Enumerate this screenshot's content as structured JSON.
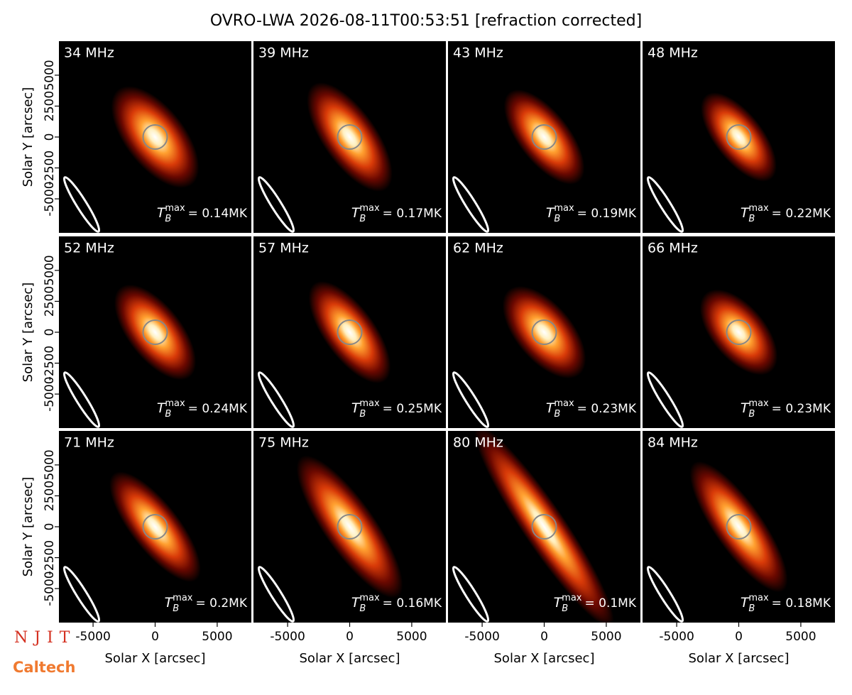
{
  "chart_data": {
    "type": "image-grid",
    "title": "OVRO-LWA 2026-08-11T00:53:51 [refraction corrected]",
    "x_label": "Solar X [arcsec]",
    "y_label": "Solar Y [arcsec]",
    "xlim": [
      -7750,
      7750
    ],
    "ylim": [
      -7750,
      7750
    ],
    "xticks": [
      -5000,
      0,
      5000
    ],
    "yticks": [
      -5000,
      -2500,
      0,
      2500,
      5000
    ],
    "annotation_symbol": {
      "base": "T",
      "sub": "B",
      "sup": "max"
    },
    "panels": [
      {
        "title": "34 MHz",
        "annotation": "= 0.14MK"
      },
      {
        "title": "39 MHz",
        "annotation": "= 0.17MK"
      },
      {
        "title": "43 MHz",
        "annotation": "= 0.19MK"
      },
      {
        "title": "48 MHz",
        "annotation": "= 0.22MK"
      },
      {
        "title": "52 MHz",
        "annotation": "= 0.24MK"
      },
      {
        "title": "57 MHz",
        "annotation": "= 0.25MK"
      },
      {
        "title": "62 MHz",
        "annotation": "= 0.23MK"
      },
      {
        "title": "66 MHz",
        "annotation": "= 0.23MK"
      },
      {
        "title": "71 MHz",
        "annotation": "= 0.2MK"
      },
      {
        "title": "75 MHz",
        "annotation": "= 0.16MK"
      },
      {
        "title": "80 MHz",
        "annotation": "= 0.1MK"
      },
      {
        "title": "84 MHz",
        "annotation": "= 0.18MK"
      }
    ],
    "logos": [
      "NJIT",
      "Caltech"
    ]
  }
}
